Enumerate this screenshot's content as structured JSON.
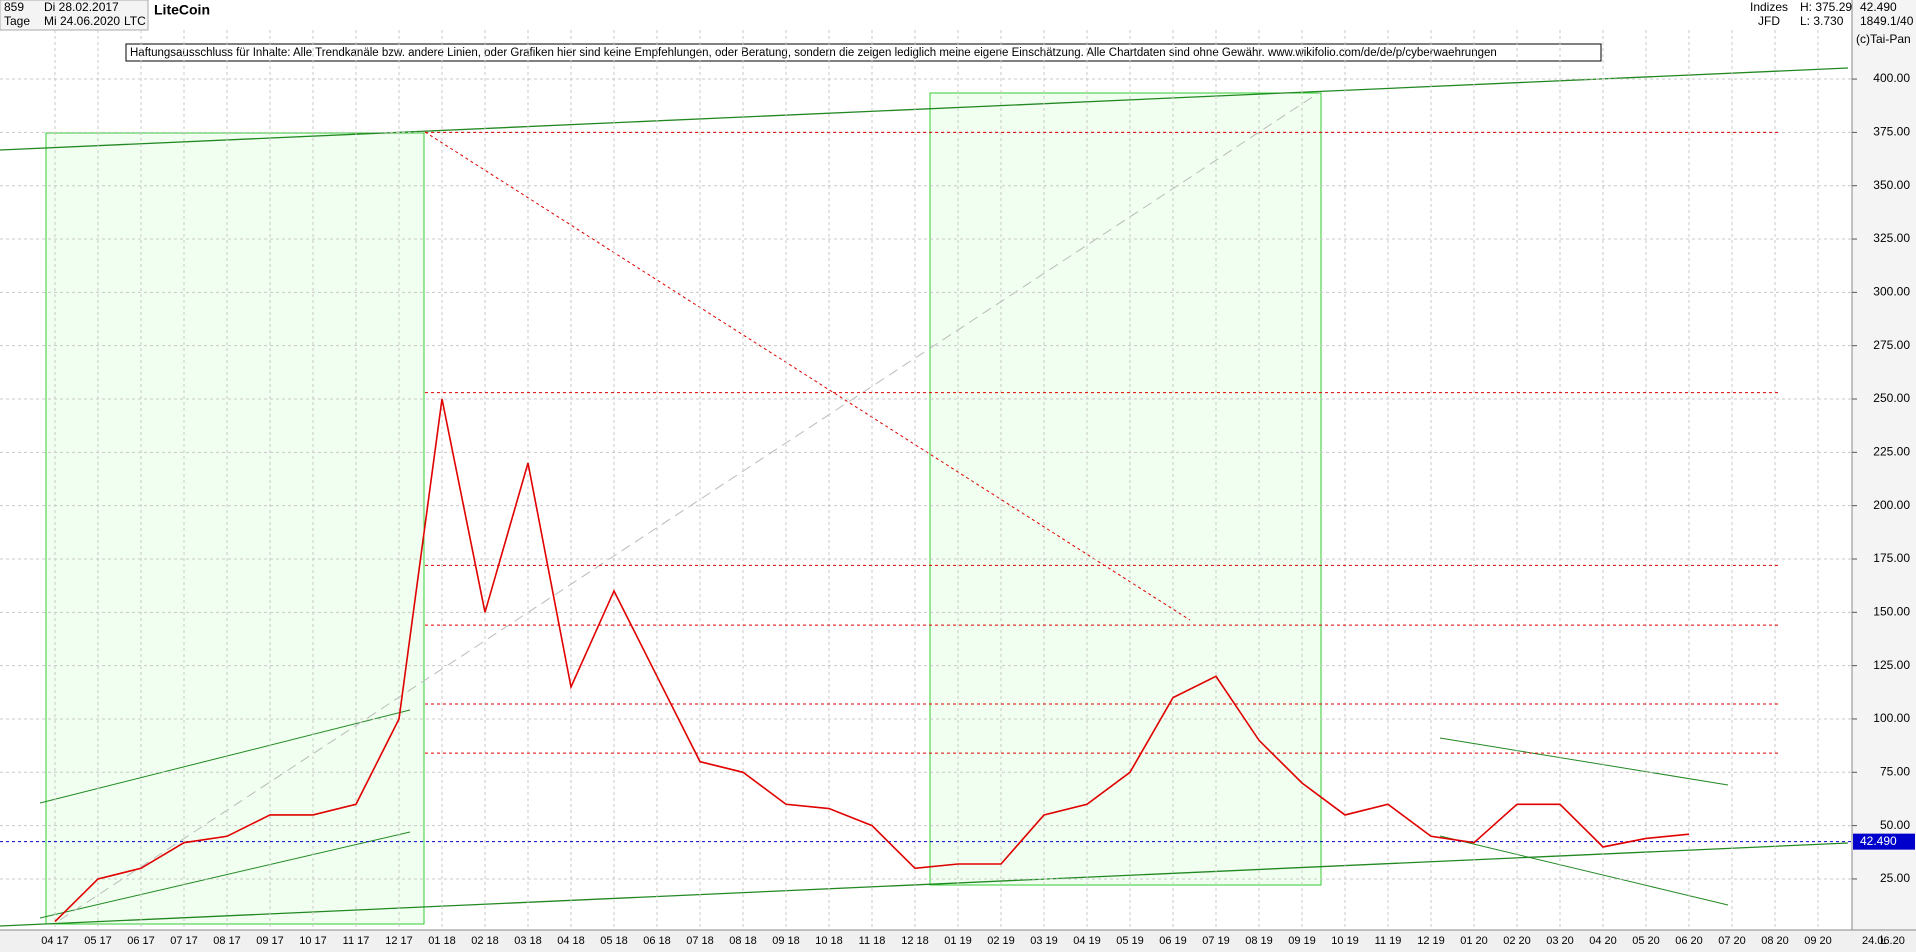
{
  "chart_data": {
    "type": "line",
    "title": "LiteCoin",
    "symbol": "LTC",
    "header": {
      "count": "859",
      "start": "Di 28.02.2017",
      "period": "Tage",
      "end": "Mi 24.06.2020",
      "group": "Indizes",
      "broker": "JFD",
      "high": "H: 375.29",
      "low": "L: 3.730",
      "ratio": "1849.1/40",
      "copyright": "(c)Tai-Pan",
      "scale_mode": "L",
      "date": "24.06.20"
    },
    "disclaimer": "Haftungsausschluss für Inhalte: Alle Trendkanäle bzw. andere Linien, oder Grafiken hier sind keine Empfehlungen, oder Beratung, sondern die zeigen lediglich meine eigene Einschätzung. Alle Chartdaten sind ohne Gewähr.  www.wikifolio.com/de/de/p/cyberwaehrungen",
    "categories": [
      "04 17",
      "05 17",
      "06 17",
      "07 17",
      "08 17",
      "09 17",
      "10 17",
      "11 17",
      "12 17",
      "01 18",
      "02 18",
      "03 18",
      "04 18",
      "05 18",
      "06 18",
      "07 18",
      "08 18",
      "09 18",
      "10 18",
      "11 18",
      "12 18",
      "01 19",
      "02 19",
      "03 19",
      "04 19",
      "05 19",
      "06 19",
      "07 19",
      "08 19",
      "09 19",
      "10 19",
      "11 19",
      "12 19",
      "01 20",
      "02 20",
      "03 20",
      "04 20",
      "05 20",
      "06 20",
      "07 20",
      "08 20",
      "09 20"
    ],
    "series": [
      {
        "name": "LTC",
        "color": "#e00000",
        "values": [
          5,
          25,
          30,
          42,
          45,
          55,
          55,
          60,
          100,
          250,
          150,
          220,
          115,
          160,
          120,
          80,
          75,
          60,
          58,
          50,
          30,
          32,
          32,
          55,
          60,
          75,
          110,
          120,
          90,
          70,
          55,
          60,
          45,
          42,
          60,
          60,
          40,
          44,
          46,
          null,
          null,
          null
        ]
      }
    ],
    "last_price": {
      "value": 42.49,
      "label": "42.490"
    },
    "levels": [
      375,
      253,
      172,
      144,
      107,
      84
    ],
    "ylim": [
      2,
      423
    ],
    "yticks": [
      {
        "value": 25,
        "label": "25.00"
      },
      {
        "value": 50,
        "label": "50.00"
      },
      {
        "value": 75,
        "label": "75.00"
      },
      {
        "value": 100,
        "label": "100.00"
      },
      {
        "value": 125,
        "label": "125.00"
      },
      {
        "value": 150,
        "label": "150.00"
      },
      {
        "value": 175,
        "label": "175.00"
      },
      {
        "value": 200,
        "label": "200.00"
      },
      {
        "value": 225,
        "label": "225.00"
      },
      {
        "value": 250,
        "label": "250.00"
      },
      {
        "value": 275,
        "label": "275.00"
      },
      {
        "value": 300,
        "label": "300.00"
      },
      {
        "value": 325,
        "label": "325.00"
      },
      {
        "value": 350,
        "label": "350.00"
      },
      {
        "value": 375,
        "label": "375.00"
      },
      {
        "value": 400,
        "label": "400.00"
      }
    ],
    "grid": true
  }
}
